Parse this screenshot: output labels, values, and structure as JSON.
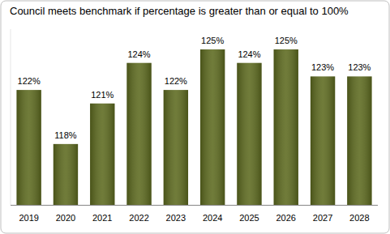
{
  "chart_data": {
    "type": "bar",
    "title": "Council meets benchmark if percentage is greater than or equal to 100%",
    "categories": [
      "2019",
      "2020",
      "2021",
      "2022",
      "2023",
      "2024",
      "2025",
      "2026",
      "2027",
      "2028"
    ],
    "values": [
      122,
      118,
      121,
      124,
      122,
      125,
      124,
      125,
      123,
      123
    ],
    "value_labels": [
      "122%",
      "118%",
      "121%",
      "124%",
      "122%",
      "125%",
      "124%",
      "125%",
      "123%",
      "123%"
    ],
    "color": "#5d6a1f",
    "ylim": [
      113.5,
      126.5
    ],
    "data_labels": true,
    "tick_labels": "x"
  }
}
